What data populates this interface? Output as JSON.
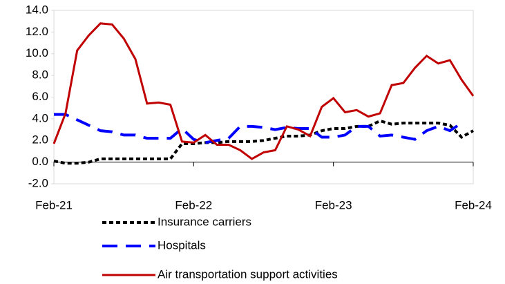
{
  "chart_data": {
    "type": "line",
    "categories": [
      "Feb-21",
      null,
      null,
      null,
      null,
      null,
      null,
      null,
      null,
      null,
      null,
      null,
      "Feb-22",
      null,
      null,
      null,
      null,
      null,
      null,
      null,
      null,
      null,
      null,
      null,
      "Feb-23",
      null,
      null,
      null,
      null,
      null,
      null,
      null,
      null,
      null,
      null,
      null,
      "Feb-24"
    ],
    "series": [
      {
        "name": "Insurance carriers",
        "color": "#000000",
        "dash": "short",
        "values": [
          0.1,
          -0.1,
          -0.1,
          0.0,
          0.3,
          0.3,
          0.3,
          0.3,
          0.3,
          0.3,
          0.3,
          1.7,
          1.7,
          1.8,
          1.8,
          1.9,
          1.9,
          1.9,
          2.0,
          2.2,
          2.4,
          2.4,
          2.5,
          2.9,
          3.1,
          3.1,
          3.3,
          3.3,
          3.8,
          3.5,
          3.6,
          3.6,
          3.6,
          3.6,
          3.4,
          2.3,
          2.9
        ]
      },
      {
        "name": "Hospitals",
        "color": "#0000ff",
        "dash": "long",
        "values": [
          4.4,
          4.4,
          3.9,
          3.4,
          2.9,
          2.8,
          2.5,
          2.5,
          2.2,
          2.2,
          2.2,
          3.1,
          2.1,
          1.8,
          2.0,
          2.2,
          3.3,
          3.3,
          3.2,
          3.0,
          3.2,
          3.1,
          3.1,
          2.3,
          2.3,
          2.5,
          3.3,
          3.3,
          2.4,
          2.5,
          2.3,
          2.1,
          2.9,
          3.3,
          2.9,
          3.6,
          null
        ]
      },
      {
        "name": "Air transportation support activities",
        "color": "#c00000",
        "dash": "solid",
        "values": [
          1.7,
          4.5,
          10.3,
          11.7,
          12.8,
          12.7,
          11.4,
          9.5,
          5.4,
          5.5,
          5.3,
          1.9,
          1.8,
          2.5,
          1.6,
          1.6,
          1.1,
          0.3,
          0.9,
          1.1,
          3.3,
          3.0,
          2.4,
          5.1,
          5.9,
          4.6,
          4.8,
          4.2,
          4.5,
          7.1,
          7.3,
          8.7,
          9.8,
          9.1,
          9.4,
          7.6,
          6.1
        ]
      }
    ],
    "ylim": [
      -2,
      14
    ],
    "yticks": [
      {
        "value": -2,
        "label": "-2.0"
      },
      {
        "value": 0,
        "label": "0.0"
      },
      {
        "value": 2,
        "label": "2.0"
      },
      {
        "value": 4,
        "label": "4.0"
      },
      {
        "value": 6,
        "label": "6.0"
      },
      {
        "value": 8,
        "label": "8.0"
      },
      {
        "value": 10,
        "label": "10.0"
      },
      {
        "value": 12,
        "label": "12.0"
      },
      {
        "value": 14,
        "label": "14.0"
      }
    ],
    "legend": "bottom"
  }
}
